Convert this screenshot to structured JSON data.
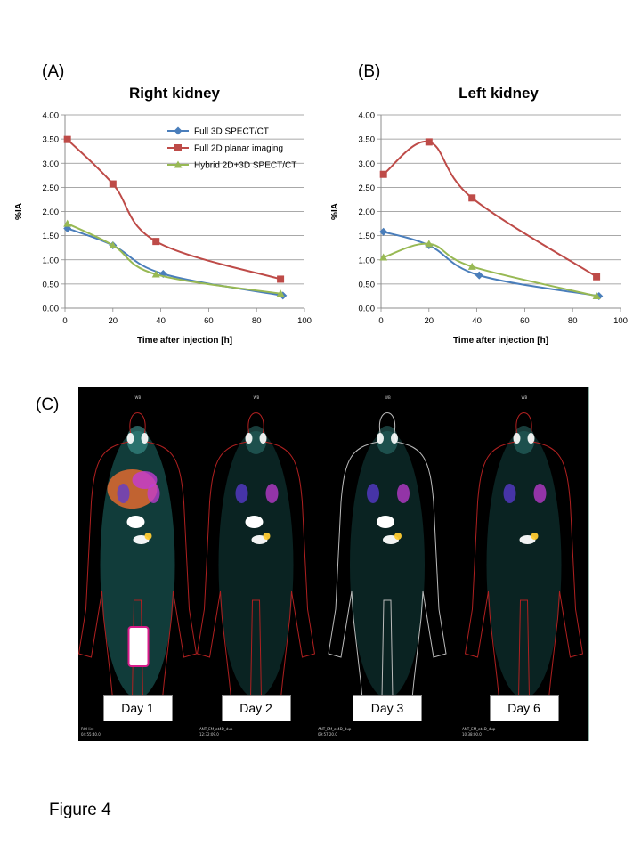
{
  "panel_labels": {
    "a": "(A)",
    "b": "(B)",
    "c": "(C)"
  },
  "chart_data": [
    {
      "type": "line",
      "title": "Right kidney",
      "xlabel": "Time after injection [h]",
      "ylabel": "%IA",
      "xlim": [
        0,
        100
      ],
      "ylim": [
        0,
        4
      ],
      "x_ticks": [
        "0",
        "20",
        "40",
        "60",
        "80",
        "100"
      ],
      "y_ticks": [
        "0.00",
        "0.50",
        "1.00",
        "1.50",
        "2.00",
        "2.50",
        "3.00",
        "3.50",
        "4.00"
      ],
      "grid": "horizontal",
      "legend_position": "top-right",
      "series": [
        {
          "name": "Full 3D SPECT/CT",
          "color": "#4a7ebb",
          "marker": "diamond",
          "x": [
            1,
            20,
            41,
            91
          ],
          "y": [
            1.65,
            1.3,
            0.71,
            0.26
          ]
        },
        {
          "name": "Full 2D planar imaging",
          "color": "#be4b48",
          "marker": "square",
          "x": [
            1,
            20,
            38,
            90
          ],
          "y": [
            3.49,
            2.57,
            1.38,
            0.6
          ]
        },
        {
          "name": "Hybrid 2D+3D SPECT/CT",
          "color": "#98b954",
          "marker": "triangle",
          "x": [
            1,
            20,
            38,
            90
          ],
          "y": [
            1.75,
            1.3,
            0.7,
            0.3
          ]
        }
      ]
    },
    {
      "type": "line",
      "title": "Left kidney",
      "xlabel": "Time after injection [h]",
      "ylabel": "%IA",
      "xlim": [
        0,
        100
      ],
      "ylim": [
        0,
        4
      ],
      "x_ticks": [
        "0",
        "20",
        "40",
        "60",
        "80",
        "100"
      ],
      "y_ticks": [
        "0.00",
        "0.50",
        "1.00",
        "1.50",
        "2.00",
        "2.50",
        "3.00",
        "3.50",
        "4.00"
      ],
      "grid": "horizontal",
      "legend_position": "none",
      "series": [
        {
          "name": "Full 3D SPECT/CT",
          "color": "#4a7ebb",
          "marker": "diamond",
          "x": [
            1,
            20,
            41,
            91
          ],
          "y": [
            1.58,
            1.3,
            0.68,
            0.25
          ]
        },
        {
          "name": "Full 2D planar imaging",
          "color": "#be4b48",
          "marker": "square",
          "x": [
            1,
            20,
            38,
            90
          ],
          "y": [
            2.77,
            3.44,
            2.28,
            0.65
          ]
        },
        {
          "name": "Hybrid 2D+3D SPECT/CT",
          "color": "#98b954",
          "marker": "triangle",
          "x": [
            1,
            20,
            38,
            90
          ],
          "y": [
            1.05,
            1.33,
            0.86,
            0.25
          ]
        }
      ]
    }
  ],
  "scans": [
    {
      "day_label": "Day 1",
      "top_label": "WB",
      "timestamp": "04:55:40.0",
      "roi_label": "ROI list"
    },
    {
      "day_label": "Day 2",
      "top_label": "WB",
      "timestamp": "12:32:09.0",
      "roi_label": "ANT_EM_at4D_dup"
    },
    {
      "day_label": "Day 3",
      "top_label": "WB",
      "timestamp": "09:57:20.0",
      "roi_label": "ANT_EM_at4D_dup"
    },
    {
      "day_label": "Day 6",
      "top_label": "WB",
      "timestamp": "10:38:00.0",
      "roi_label": "ANT_EM_at4D_dup"
    }
  ],
  "figure_caption": "Figure 4"
}
